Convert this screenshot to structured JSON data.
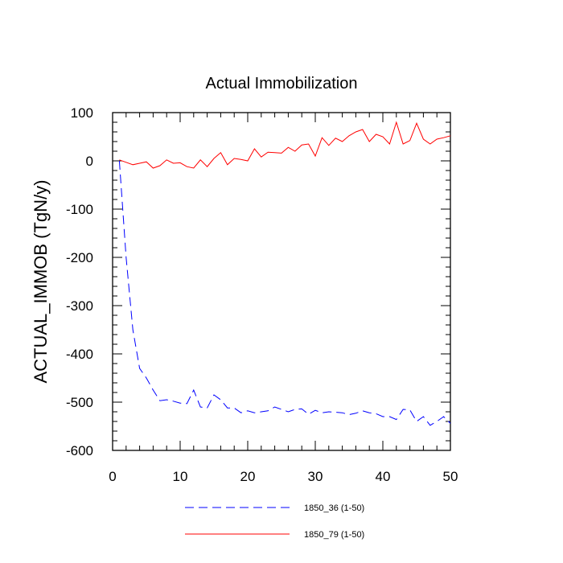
{
  "chart_data": {
    "type": "line",
    "title": "Actual Immobilization",
    "xlabel": "",
    "ylabel": "ACTUAL_IMMOB  (TgN/y)",
    "xlim": [
      0,
      50
    ],
    "ylim": [
      -600,
      100
    ],
    "x_ticks": [
      0,
      10,
      20,
      30,
      40,
      50
    ],
    "y_ticks": [
      -600,
      -500,
      -400,
      -300,
      -200,
      -100,
      0,
      100
    ],
    "legend_position": "bottom",
    "series": [
      {
        "name": "1850_36 (1-50)",
        "color": "#0000ff",
        "style": "dashed",
        "x": [
          1,
          2,
          3,
          4,
          5,
          6,
          7,
          8,
          9,
          10,
          11,
          12,
          13,
          14,
          15,
          16,
          17,
          18,
          19,
          20,
          21,
          22,
          23,
          24,
          25,
          26,
          27,
          28,
          29,
          30,
          31,
          32,
          33,
          34,
          35,
          36,
          37,
          38,
          39,
          40,
          41,
          42,
          43,
          44,
          45,
          46,
          47,
          48,
          49,
          50
        ],
        "values": [
          0,
          -200,
          -350,
          -430,
          -450,
          -475,
          -497,
          -495,
          -498,
          -502,
          -503,
          -475,
          -510,
          -512,
          -485,
          -495,
          -512,
          -512,
          -522,
          -518,
          -522,
          -520,
          -518,
          -510,
          -515,
          -520,
          -515,
          -514,
          -525,
          -517,
          -522,
          -520,
          -521,
          -522,
          -526,
          -523,
          -518,
          -522,
          -524,
          -530,
          -530,
          -536,
          -515,
          -516,
          -540,
          -530,
          -548,
          -540,
          -530,
          -544
        ]
      },
      {
        "name": "1850_79 (1-50)",
        "color": "#ff0000",
        "style": "solid",
        "x": [
          1,
          2,
          3,
          4,
          5,
          6,
          7,
          8,
          9,
          10,
          11,
          12,
          13,
          14,
          15,
          16,
          17,
          18,
          19,
          20,
          21,
          22,
          23,
          24,
          25,
          26,
          27,
          28,
          29,
          30,
          31,
          32,
          33,
          34,
          35,
          36,
          37,
          38,
          39,
          40,
          41,
          42,
          43,
          44,
          45,
          46,
          47,
          48,
          49,
          50
        ],
        "values": [
          2,
          -3,
          -8,
          -5,
          -2,
          -15,
          -10,
          2,
          -5,
          -4,
          -12,
          -15,
          2,
          -12,
          5,
          17,
          -8,
          5,
          3,
          0,
          25,
          8,
          18,
          17,
          16,
          28,
          20,
          33,
          35,
          10,
          48,
          32,
          47,
          40,
          52,
          60,
          65,
          40,
          55,
          50,
          35,
          80,
          35,
          42,
          78,
          45,
          35,
          45,
          48,
          52
        ]
      }
    ]
  }
}
